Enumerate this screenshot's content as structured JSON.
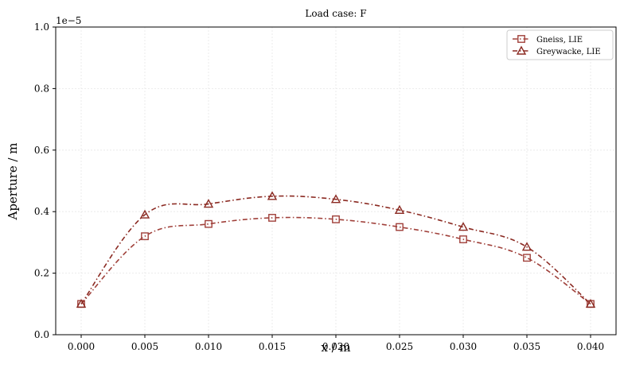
{
  "chart_data": {
    "type": "line",
    "title": "Load case: F",
    "xlabel": "x / m",
    "ylabel": "Aperture / m",
    "y_offset_label": "1e−5",
    "xlim": [
      -0.002,
      0.042
    ],
    "ylim": [
      0,
      1.0
    ],
    "x_ticks": [
      0.0,
      0.005,
      0.01,
      0.015,
      0.02,
      0.025,
      0.03,
      0.035,
      0.04
    ],
    "x_tick_labels": [
      "0.000",
      "0.005",
      "0.010",
      "0.015",
      "0.020",
      "0.025",
      "0.030",
      "0.035",
      "0.040"
    ],
    "y_ticks": [
      0.0,
      0.2,
      0.4,
      0.6,
      0.8,
      1.0
    ],
    "y_tick_labels": [
      "0.0",
      "0.2",
      "0.4",
      "0.6",
      "0.8",
      "1.0"
    ],
    "grid": true,
    "legend_position": "top-right",
    "x": [
      0.0,
      0.005,
      0.01,
      0.015,
      0.02,
      0.025,
      0.03,
      0.035,
      0.04
    ],
    "series": [
      {
        "name": "Gneiss, LIE",
        "marker": "square",
        "color": "#a0403a",
        "values": [
          0.1,
          0.32,
          0.36,
          0.38,
          0.375,
          0.35,
          0.31,
          0.25,
          0.1
        ]
      },
      {
        "name": "Greywacke, LIE",
        "marker": "triangle",
        "color": "#8b2a22",
        "values": [
          0.1,
          0.39,
          0.425,
          0.45,
          0.44,
          0.405,
          0.35,
          0.285,
          0.1
        ]
      }
    ]
  }
}
